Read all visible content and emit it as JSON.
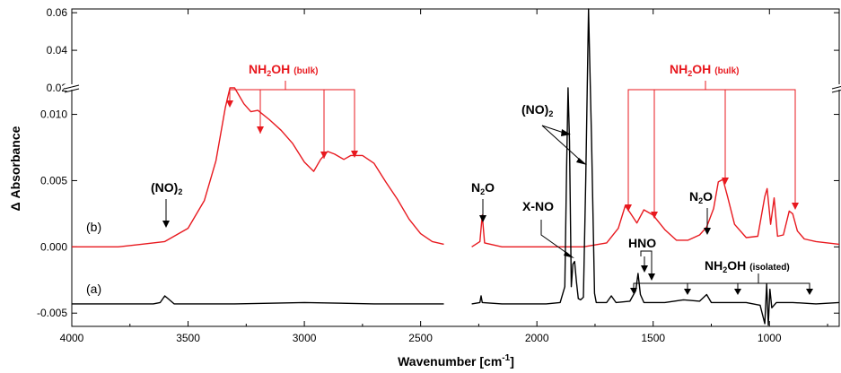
{
  "chart_data": {
    "type": "line",
    "xlabel": "Wavenumber [cm",
    "xlabel_sup": "-1",
    "xlabel_close": "]",
    "ylabel": "Δ Absorbance",
    "xlim": [
      4000,
      700
    ],
    "x_ticks": [
      "4000",
      "3500",
      "3000",
      "2500",
      "2000",
      "1500",
      "1000"
    ],
    "y_ticks_lower": [
      "-0.005",
      "0.000",
      "0.005",
      "0.010"
    ],
    "y_ticks_upper": [
      "0.02",
      "0.04",
      "0.06"
    ],
    "axis_break": {
      "lower_max": 0.012,
      "upper_min": 0.02
    },
    "ylim_lower": [
      -0.006,
      0.012
    ],
    "ylim_upper": [
      0.02,
      0.062
    ],
    "colors": {
      "b": "#e8191f",
      "a": "#000000"
    },
    "gap": [
      2400,
      2280
    ],
    "series": [
      {
        "name": "(b)",
        "color": "#e8191f",
        "points": [
          [
            4000,
            0.0
          ],
          [
            3800,
            0.0
          ],
          [
            3700,
            0.0002
          ],
          [
            3600,
            0.0004
          ],
          [
            3500,
            0.0014
          ],
          [
            3430,
            0.0035
          ],
          [
            3380,
            0.0065
          ],
          [
            3340,
            0.0105
          ],
          [
            3320,
            0.0125
          ],
          [
            3300,
            0.0122
          ],
          [
            3260,
            0.0108
          ],
          [
            3230,
            0.0102
          ],
          [
            3200,
            0.0103
          ],
          [
            3150,
            0.0096
          ],
          [
            3100,
            0.0088
          ],
          [
            3050,
            0.0078
          ],
          [
            3000,
            0.0064
          ],
          [
            2960,
            0.0057
          ],
          [
            2930,
            0.0066
          ],
          [
            2900,
            0.0072
          ],
          [
            2870,
            0.007
          ],
          [
            2830,
            0.0066
          ],
          [
            2800,
            0.0069
          ],
          [
            2750,
            0.0069
          ],
          [
            2700,
            0.0063
          ],
          [
            2650,
            0.0049
          ],
          [
            2600,
            0.0036
          ],
          [
            2550,
            0.0021
          ],
          [
            2500,
            0.001
          ],
          [
            2450,
            0.0004
          ],
          [
            2400,
            0.0002
          ],
          [
            2280,
            0.0
          ],
          [
            2245,
            0.0004
          ],
          [
            2235,
            0.0024
          ],
          [
            2225,
            0.0003
          ],
          [
            2150,
            0.0
          ],
          [
            1800,
            0.0
          ],
          [
            1700,
            0.0003
          ],
          [
            1650,
            0.0014
          ],
          [
            1620,
            0.0031
          ],
          [
            1600,
            0.0026
          ],
          [
            1570,
            0.0018
          ],
          [
            1540,
            0.0028
          ],
          [
            1500,
            0.0024
          ],
          [
            1450,
            0.0013
          ],
          [
            1400,
            0.0005
          ],
          [
            1350,
            0.0005
          ],
          [
            1300,
            0.0009
          ],
          [
            1270,
            0.0015
          ],
          [
            1240,
            0.0029
          ],
          [
            1220,
            0.0049
          ],
          [
            1200,
            0.0051
          ],
          [
            1180,
            0.0038
          ],
          [
            1150,
            0.0017
          ],
          [
            1100,
            0.0007
          ],
          [
            1050,
            0.0008
          ],
          [
            1020,
            0.0038
          ],
          [
            1010,
            0.0044
          ],
          [
            995,
            0.0017
          ],
          [
            980,
            0.0037
          ],
          [
            965,
            0.0008
          ],
          [
            940,
            0.0009
          ],
          [
            915,
            0.0027
          ],
          [
            900,
            0.0025
          ],
          [
            880,
            0.0012
          ],
          [
            850,
            0.0006
          ],
          [
            800,
            0.0004
          ],
          [
            750,
            0.0003
          ],
          [
            700,
            0.0002
          ]
        ]
      },
      {
        "name": "(a)",
        "color": "#000000",
        "points": [
          [
            4000,
            -0.0043
          ],
          [
            3800,
            -0.0043
          ],
          [
            3650,
            -0.0043
          ],
          [
            3620,
            -0.0042
          ],
          [
            3600,
            -0.0037
          ],
          [
            3580,
            -0.004
          ],
          [
            3560,
            -0.0043
          ],
          [
            3300,
            -0.0043
          ],
          [
            3000,
            -0.0042
          ],
          [
            2700,
            -0.0043
          ],
          [
            2400,
            -0.0043
          ],
          [
            2280,
            -0.0043
          ],
          [
            2245,
            -0.0042
          ],
          [
            2240,
            -0.0037
          ],
          [
            2235,
            -0.0042
          ],
          [
            2150,
            -0.0043
          ],
          [
            1960,
            -0.0043
          ],
          [
            1900,
            -0.0042
          ],
          [
            1880,
            -0.003
          ],
          [
            1872,
            0.006
          ],
          [
            1866,
            0.0135
          ],
          [
            1860,
            0.008
          ],
          [
            1852,
            -0.003
          ],
          [
            1845,
            -0.0013
          ],
          [
            1838,
            -0.0011
          ],
          [
            1830,
            -0.0026
          ],
          [
            1822,
            -0.0039
          ],
          [
            1812,
            -0.004
          ],
          [
            1800,
            -0.0038
          ],
          [
            1790,
            0.005
          ],
          [
            1778,
            0.064
          ],
          [
            1765,
            0.008
          ],
          [
            1752,
            -0.0035
          ],
          [
            1745,
            -0.0042
          ],
          [
            1700,
            -0.0042
          ],
          [
            1680,
            -0.0037
          ],
          [
            1660,
            -0.0042
          ],
          [
            1600,
            -0.0041
          ],
          [
            1575,
            -0.0033
          ],
          [
            1565,
            -0.002
          ],
          [
            1555,
            -0.0036
          ],
          [
            1540,
            -0.0042
          ],
          [
            1450,
            -0.0042
          ],
          [
            1370,
            -0.004
          ],
          [
            1300,
            -0.0041
          ],
          [
            1270,
            -0.0036
          ],
          [
            1250,
            -0.0042
          ],
          [
            1100,
            -0.0042
          ],
          [
            1040,
            -0.0044
          ],
          [
            1020,
            -0.0058
          ],
          [
            1012,
            -0.0028
          ],
          [
            1005,
            -0.0059
          ],
          [
            998,
            -0.0032
          ],
          [
            990,
            -0.0046
          ],
          [
            970,
            -0.0042
          ],
          [
            900,
            -0.0042
          ],
          [
            800,
            -0.0043
          ],
          [
            700,
            -0.0042
          ]
        ]
      }
    ],
    "trace_labels": {
      "b": "(b)",
      "a": "(a)"
    },
    "annotations": {
      "nh2oh_bulk_left": {
        "text": "NH",
        "sub": "2",
        "text2": "OH",
        "small": "(bulk)"
      },
      "nh2oh_bulk_right": {
        "text": "NH",
        "sub": "2",
        "text2": "OH",
        "small": "(bulk)"
      },
      "no2_left": {
        "text": "(NO)",
        "sub": "2"
      },
      "no2_mid": {
        "text": "(NO)",
        "sub": "2"
      },
      "n2o_left": {
        "text": "N",
        "sub": "2",
        "text2": "O"
      },
      "n2o_right": {
        "text": "N",
        "sub": "2",
        "text2": "O"
      },
      "x_no": {
        "text": "X-NO"
      },
      "hno": {
        "text": "HNO"
      },
      "nh2oh_isolated": {
        "text": "NH",
        "sub": "2",
        "text2": "OH",
        "small": "(isolated)"
      }
    }
  }
}
